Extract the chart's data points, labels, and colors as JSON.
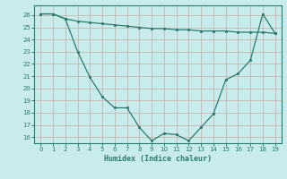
{
  "line1_x": [
    0,
    1,
    2,
    3,
    4,
    5,
    6,
    7,
    8,
    9,
    10,
    11,
    12,
    13,
    14,
    15,
    16,
    17,
    18,
    19
  ],
  "line1_y": [
    26.1,
    26.1,
    25.7,
    25.5,
    25.4,
    25.3,
    25.2,
    25.1,
    25.0,
    24.9,
    24.9,
    24.8,
    24.8,
    24.7,
    24.7,
    24.7,
    24.6,
    24.6,
    24.6,
    24.5
  ],
  "line2_x": [
    0,
    1,
    2,
    3,
    4,
    5,
    6,
    7,
    8,
    9,
    10,
    11,
    12,
    13,
    14,
    15,
    16,
    17,
    18,
    19
  ],
  "line2_y": [
    26.1,
    26.1,
    25.7,
    23.0,
    20.9,
    19.3,
    18.4,
    18.4,
    16.8,
    15.7,
    16.3,
    16.2,
    15.7,
    16.8,
    17.9,
    20.7,
    21.2,
    22.3,
    26.1,
    24.5
  ],
  "line_color": "#2a7a6f",
  "bg_color": "#c8ecec",
  "grid_color_major": "#b8dcdc",
  "grid_color_minor": "#d8f0f0",
  "xlabel": "Humidex (Indice chaleur)",
  "ylim": [
    15.5,
    26.8
  ],
  "xlim": [
    -0.5,
    19.5
  ],
  "yticks": [
    16,
    17,
    18,
    19,
    20,
    21,
    22,
    23,
    24,
    25,
    26
  ],
  "xticks": [
    0,
    1,
    2,
    3,
    4,
    5,
    6,
    7,
    8,
    9,
    10,
    11,
    12,
    13,
    14,
    15,
    16,
    17,
    18,
    19
  ]
}
